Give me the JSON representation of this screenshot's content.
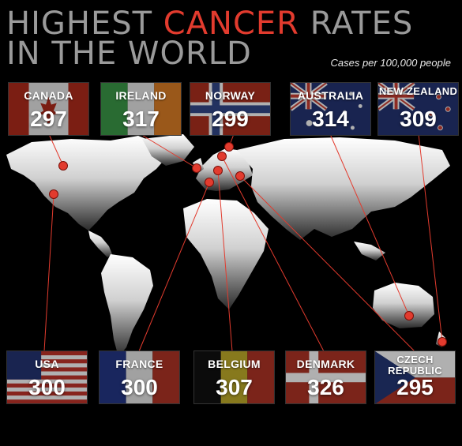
{
  "title": {
    "line1_prefix": "HIGHEST ",
    "line1_accent": "CANCER",
    "line1_suffix": " RATES",
    "line2": "IN THE WORLD"
  },
  "subtitle": "Cases per 100,000 people",
  "colors": {
    "accent": "#e23b2e",
    "title": "#9a9a9a",
    "background": "#000000",
    "map_land": "#cfcfcf",
    "lines": "#e23b2e"
  },
  "countries_top": [
    {
      "name": "CANADA",
      "value": "297",
      "flag": "canada"
    },
    {
      "name": "IRELAND",
      "value": "317",
      "flag": "ireland"
    },
    {
      "name": "NORWAY",
      "value": "299",
      "flag": "norway"
    },
    {
      "name": "AUSTRALIA",
      "value": "314",
      "flag": "australia"
    },
    {
      "name": "NEW ZEALAND",
      "value": "309",
      "flag": "new-zealand"
    }
  ],
  "countries_bottom": [
    {
      "name": "USA",
      "value": "300",
      "flag": "usa"
    },
    {
      "name": "FRANCE",
      "value": "300",
      "flag": "france"
    },
    {
      "name": "BELGIUM",
      "value": "307",
      "flag": "belgium"
    },
    {
      "name": "DENMARK",
      "value": "326",
      "flag": "denmark"
    },
    {
      "name": "CZECH REPUBLIC",
      "value": "295",
      "flag": "czech-republic"
    }
  ]
}
